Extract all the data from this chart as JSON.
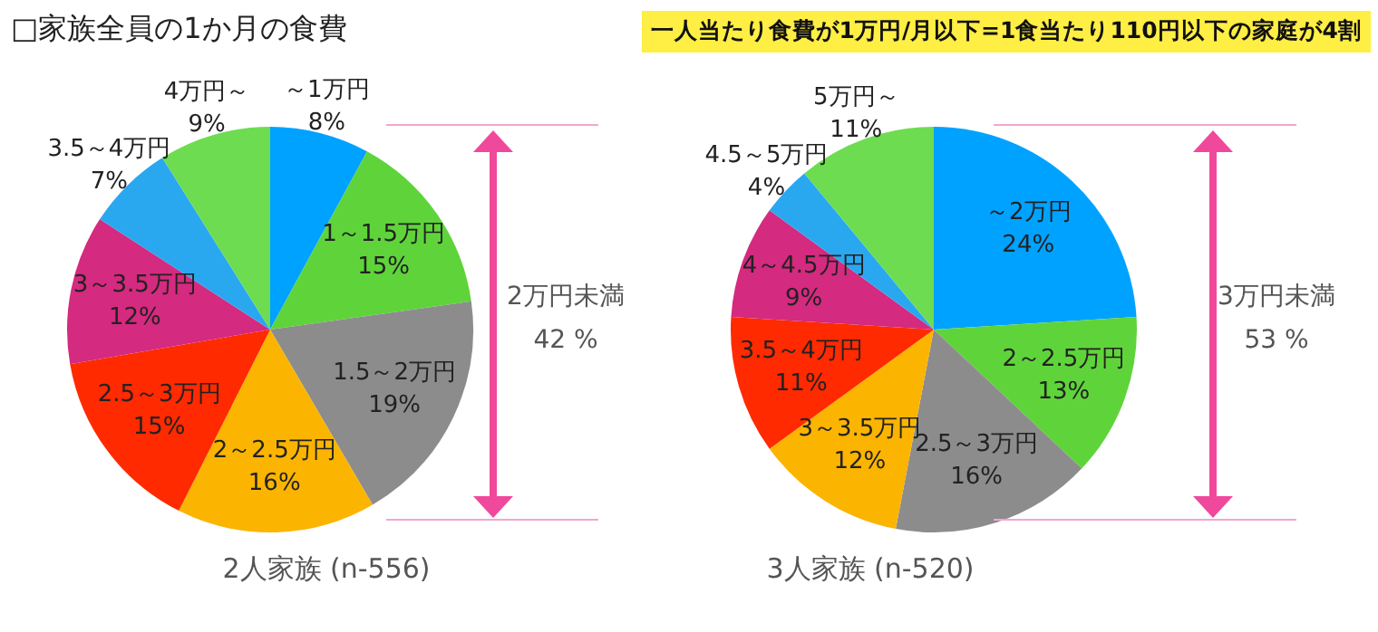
{
  "chart_data": [
    {
      "type": "pie",
      "title": "□家族全員の1か月の食費",
      "categories": [
        "～1万円",
        "1～1.5万円",
        "1.5～2万円",
        "2～2.5万円",
        "2.5～3万円",
        "3～3.5万円",
        "3.5～4万円",
        "4万円～"
      ],
      "values": [
        8,
        15,
        19,
        16,
        15,
        12,
        7,
        9
      ],
      "value_labels": [
        "8%",
        "15%",
        "19%",
        "16%",
        "15%",
        "12%",
        "7%",
        "9%"
      ],
      "colors": [
        "#00a2ff",
        "#5fd43a",
        "#8c8c8c",
        "#fbb400",
        "#ff2a00",
        "#d42a7f",
        "#29a8f0",
        "#6edc50"
      ],
      "annotations": [
        "2人家族 (n-556)",
        "2万円未満",
        "42 %"
      ],
      "legend": false
    },
    {
      "type": "pie",
      "subtitle": "一人当たり食費が1万円/月以下=1食当たり110円以下の家庭が4割",
      "categories": [
        "～2万円",
        "2～2.5万円",
        "2.5～3万円",
        "3～3.5万円",
        "3.5～4万円",
        "4～4.5万円",
        "4.5～5万円",
        "5万円～"
      ],
      "values": [
        24,
        13,
        16,
        12,
        11,
        9,
        4,
        11
      ],
      "value_labels": [
        "24%",
        "13%",
        "16%",
        "12%",
        "11%",
        "9%",
        "4%",
        "11%"
      ],
      "colors": [
        "#00a2ff",
        "#5fd43a",
        "#8c8c8c",
        "#fbb400",
        "#ff2a00",
        "#d42a7f",
        "#29a8f0",
        "#6edc50"
      ],
      "annotations": [
        "3人家族 (n-520)",
        "3万円未満",
        "53 %"
      ],
      "legend": false
    }
  ]
}
